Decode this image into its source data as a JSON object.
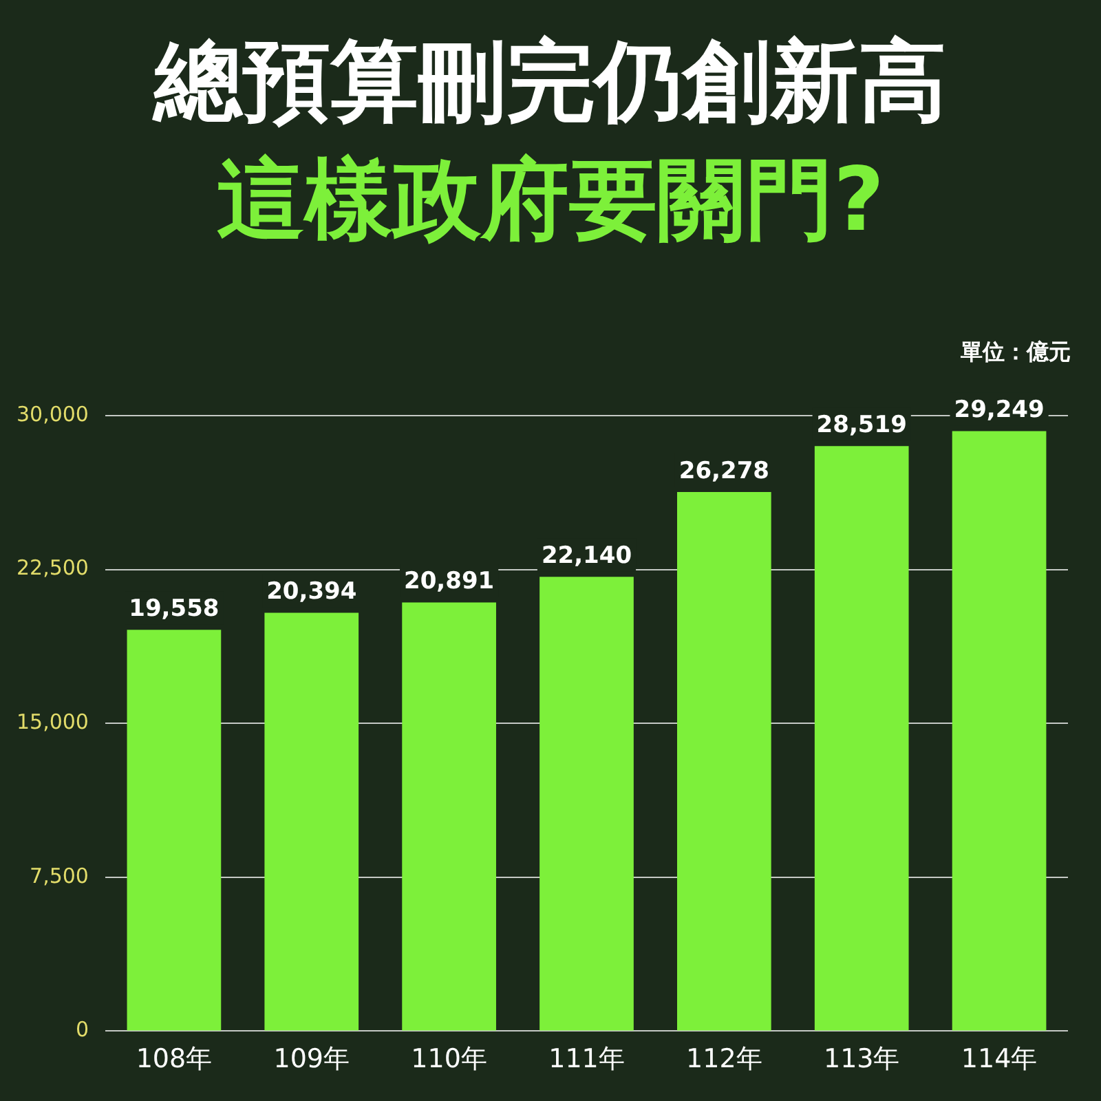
{
  "chart_data": {
    "type": "bar",
    "title": "總預算刪完仍創新高",
    "subtitle": "這樣政府要關門?",
    "annotations": [
      "單位：億元"
    ],
    "categories": [
      "108年",
      "109年",
      "110年",
      "111年",
      "112年",
      "113年",
      "114年"
    ],
    "values": [
      19558,
      20394,
      20891,
      22140,
      26278,
      28519,
      29249
    ],
    "value_labels": [
      "19,558",
      "20,394",
      "20,891",
      "22,140",
      "26,278",
      "28,519",
      "29,249"
    ],
    "color": "#7df03a",
    "ylim": [
      0,
      30000
    ],
    "yticks": [
      0,
      {
        "value": 7500,
        "label": "7,500"
      },
      {
        "value": 15000,
        "label": "15,000"
      },
      {
        "value": 22500,
        "label": "22,500"
      },
      {
        "value": 30000,
        "label": "30,000"
      }
    ],
    "grid": "y"
  }
}
